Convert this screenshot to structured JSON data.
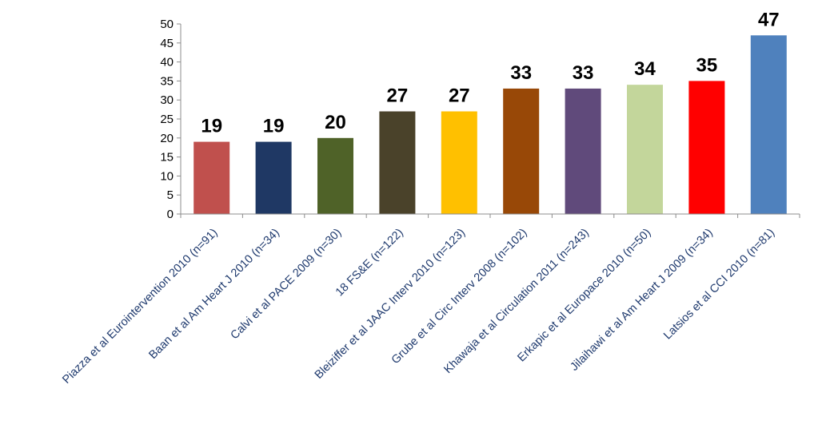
{
  "chart_data": {
    "type": "bar",
    "categories": [
      "Piazza et al Eurointervention 2010 (n=91)",
      "Baan et al Am Heart J 2010 (n=34)",
      "Calvi et al PACE 2009 (n=30)",
      "18 FS&E (n=122)",
      "Bleiziffer et al JAAC Interv 2010 (n=123)",
      "Grube et al Circ Interv 2008 (n=102)",
      "Khawaja et al Circulation 2011 (n=243)",
      "Erkapic et al Europace 2010 (n=50)",
      "Jilaihawi et al Am Heart J 2009 (n=34)",
      "Latsios et al CCI 2010 (n=81)"
    ],
    "values": [
      19,
      19,
      20,
      27,
      27,
      33,
      33,
      34,
      35,
      47
    ],
    "colors": [
      "#c0504d",
      "#1f3864",
      "#4f6228",
      "#4a422a",
      "#ffc000",
      "#984807",
      "#604a7b",
      "#c3d69b",
      "#ff0000",
      "#4f81bd"
    ],
    "ylim": [
      0,
      50
    ],
    "yticks": [
      0,
      5,
      10,
      15,
      20,
      25,
      30,
      35,
      40,
      45,
      50
    ],
    "grid": false,
    "legend": "none",
    "title": "",
    "xlabel": "",
    "ylabel": ""
  }
}
